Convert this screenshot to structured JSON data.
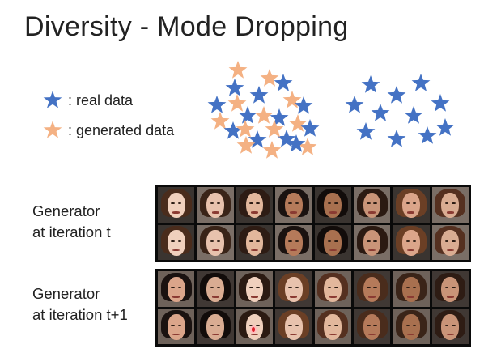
{
  "title": "Diversity - Mode Dropping",
  "legend": {
    "real_label": ": real data",
    "generated_label": ": generated data"
  },
  "colors": {
    "real_star": "#4472c4",
    "generated_star": "#f4b183"
  },
  "rows": [
    {
      "label_line1": "Generator",
      "label_line2": "at iteration t"
    },
    {
      "label_line1": "Generator",
      "label_line2": "at iteration t+1"
    }
  ],
  "highlight": {
    "description_icon": "red-dot-marker-icon"
  }
}
